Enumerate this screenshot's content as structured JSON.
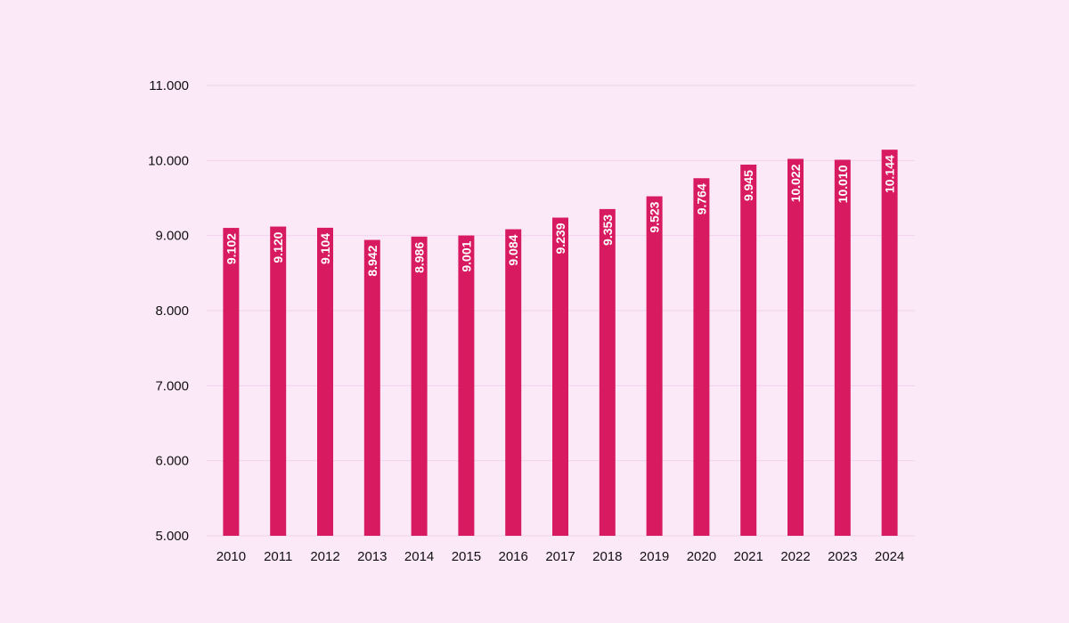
{
  "colors": {
    "background": "#fce9f8",
    "bar": "#d81b60",
    "grid": "#f0d3ec",
    "text": "#111111",
    "bar_label": "#ffffff"
  },
  "chart_data": {
    "type": "bar",
    "title": "",
    "xlabel": "",
    "ylabel": "",
    "categories": [
      "2010",
      "2011",
      "2012",
      "2013",
      "2014",
      "2015",
      "2016",
      "2017",
      "2018",
      "2019",
      "2020",
      "2021",
      "2022",
      "2023",
      "2024"
    ],
    "values": [
      9102,
      9120,
      9104,
      8942,
      8986,
      9001,
      9084,
      9239,
      9353,
      9523,
      9764,
      9945,
      10022,
      10010,
      10144
    ],
    "value_labels": [
      "9.102",
      "9.120",
      "9.104",
      "8.942",
      "8.986",
      "9.001",
      "9.084",
      "9.239",
      "9.353",
      "9.523",
      "9.764",
      "9.945",
      "10.022",
      "10.010",
      "10.144"
    ],
    "ylim": [
      5000,
      11000
    ],
    "yticks": [
      5000,
      6000,
      7000,
      8000,
      9000,
      10000,
      11000
    ],
    "ytick_labels": [
      "5.000",
      "6.000",
      "7.000",
      "8.000",
      "9.000",
      "10.000",
      "11.000"
    ],
    "grid": true,
    "legend": "none"
  }
}
